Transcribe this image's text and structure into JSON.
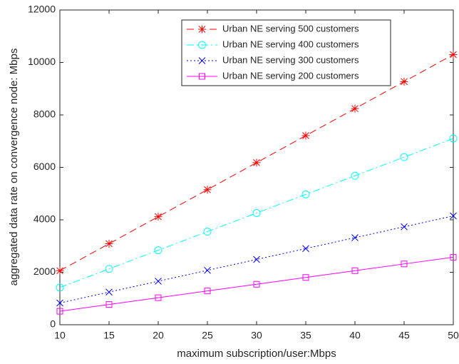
{
  "chart_data": {
    "type": "line",
    "x_label": "maximum subscription/user:Mbps",
    "y_label": "aggregated data rate on convergence node: Mbps",
    "x": [
      10,
      15,
      20,
      25,
      30,
      35,
      40,
      45,
      50
    ],
    "series": [
      {
        "name": "Urban NE serving 500 customers",
        "color": "#ff0000",
        "marker": "asterisk",
        "line_style": "dashed",
        "values": [
          2060,
          3090,
          4120,
          5150,
          6180,
          7210,
          8240,
          9270,
          10300
        ]
      },
      {
        "name": "Urban NE serving 400 customers",
        "color": "#00ffff",
        "marker": "circle",
        "line_style": "dashdot",
        "values": [
          1420,
          2130,
          2840,
          3550,
          4260,
          4970,
          5680,
          6390,
          7100
        ]
      },
      {
        "name": "Urban NE serving 300 customers",
        "color": "#0000ff",
        "marker": "x",
        "line_style": "dotted",
        "values": [
          830,
          1245,
          1660,
          2075,
          2490,
          2905,
          3320,
          3735,
          4150
        ]
      },
      {
        "name": "Urban NE serving 200 customers",
        "color": "#ff00ff",
        "marker": "square",
        "line_style": "solid",
        "values": [
          515,
          773,
          1030,
          1288,
          1545,
          1803,
          2060,
          2318,
          2575
        ]
      }
    ],
    "xlim": [
      10,
      50
    ],
    "xticks": [
      10,
      15,
      20,
      25,
      30,
      35,
      40,
      45,
      50
    ],
    "ylim": [
      0,
      12000
    ],
    "yticks": [
      0,
      2000,
      4000,
      6000,
      8000,
      10000,
      12000
    ],
    "grid": false,
    "legend": "top-right"
  }
}
